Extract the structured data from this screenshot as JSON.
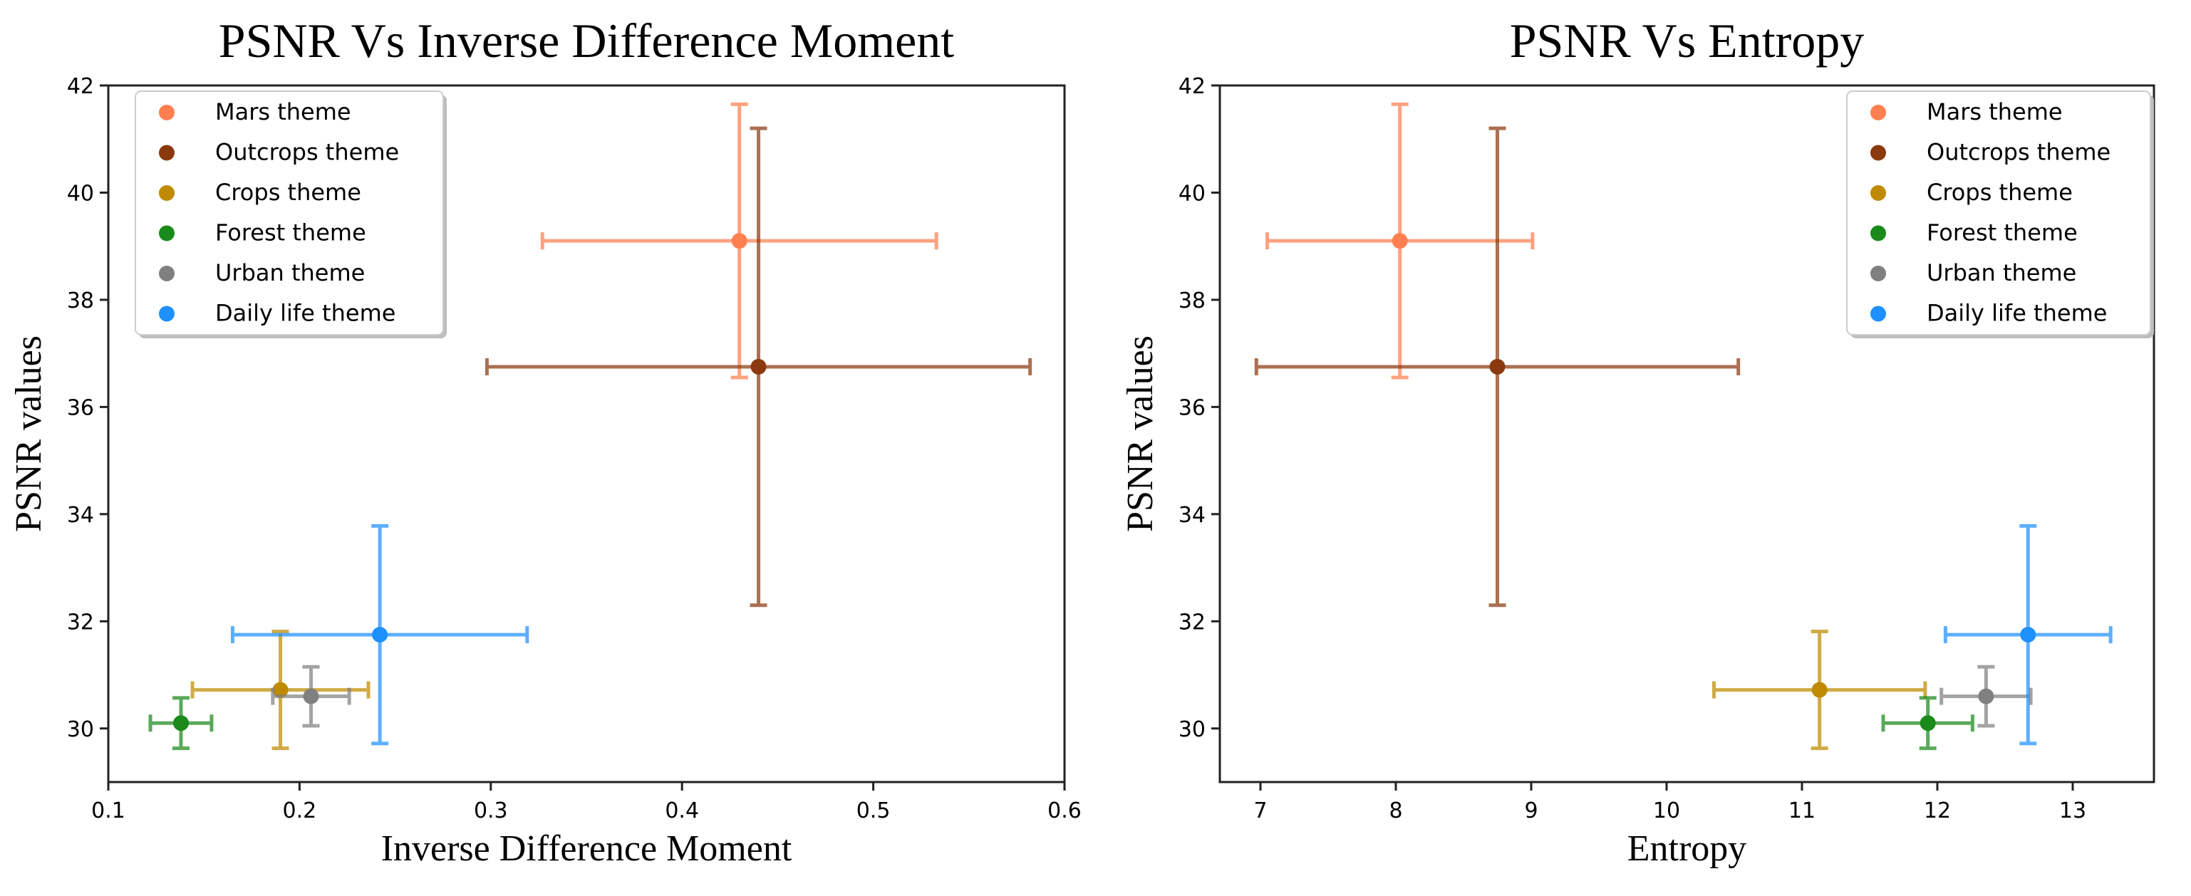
{
  "chart_data": [
    {
      "type": "scatter",
      "title": "PSNR Vs Inverse Difference Moment",
      "xlabel": "Inverse Difference Moment",
      "ylabel": "PSNR values",
      "xlim": [
        0.1,
        0.6
      ],
      "ylim": [
        29.0,
        42.0
      ],
      "xticks": [
        0.1,
        0.2,
        0.3,
        0.4,
        0.5,
        0.6
      ],
      "xtick_labels": [
        "0.1",
        "0.2",
        "0.3",
        "0.4",
        "0.5",
        "0.6"
      ],
      "yticks": [
        30,
        32,
        34,
        36,
        38,
        40,
        42
      ],
      "ytick_labels": [
        "30",
        "32",
        "34",
        "36",
        "38",
        "40",
        "42"
      ],
      "grid": false,
      "legend_position": "top-left",
      "series": [
        {
          "name": "Mars theme",
          "color": "#ff7f50",
          "x": 0.43,
          "y": 39.1,
          "xerr": 0.103,
          "yerr": 2.55
        },
        {
          "name": "Outcrops theme",
          "color": "#8b3a0f",
          "x": 0.44,
          "y": 36.75,
          "xerr": 0.142,
          "yerr": 4.45
        },
        {
          "name": "Crops theme",
          "color": "#bf8a00",
          "x": 0.19,
          "y": 30.72,
          "xerr": 0.046,
          "yerr": 1.09
        },
        {
          "name": "Forest theme",
          "color": "#1a8a1a",
          "x": 0.138,
          "y": 30.1,
          "xerr": 0.016,
          "yerr": 0.47
        },
        {
          "name": "Urban theme",
          "color": "#808080",
          "x": 0.206,
          "y": 30.6,
          "xerr": 0.02,
          "yerr": 0.55
        },
        {
          "name": "Daily life theme",
          "color": "#1e90ff",
          "x": 0.242,
          "y": 31.75,
          "xerr": 0.077,
          "yerr": 2.03
        }
      ]
    },
    {
      "type": "scatter",
      "title": "PSNR Vs Entropy",
      "xlabel": "Entropy",
      "ylabel": "PSNR values",
      "xlim": [
        6.7,
        13.6
      ],
      "ylim": [
        29.0,
        42.0
      ],
      "xticks": [
        7,
        8,
        9,
        10,
        11,
        12,
        13
      ],
      "xtick_labels": [
        "7",
        "8",
        "9",
        "10",
        "11",
        "12",
        "13"
      ],
      "yticks": [
        30,
        32,
        34,
        36,
        38,
        40,
        42
      ],
      "ytick_labels": [
        "30",
        "32",
        "34",
        "36",
        "38",
        "40",
        "42"
      ],
      "grid": false,
      "legend_position": "top-right",
      "series": [
        {
          "name": "Mars theme",
          "color": "#ff7f50",
          "x": 8.03,
          "y": 39.1,
          "xerr": 0.98,
          "yerr": 2.55
        },
        {
          "name": "Outcrops theme",
          "color": "#8b3a0f",
          "x": 8.75,
          "y": 36.75,
          "xerr": 1.78,
          "yerr": 4.45
        },
        {
          "name": "Crops theme",
          "color": "#bf8a00",
          "x": 11.13,
          "y": 30.72,
          "xerr": 0.78,
          "yerr": 1.09
        },
        {
          "name": "Forest theme",
          "color": "#1a8a1a",
          "x": 11.93,
          "y": 30.1,
          "xerr": 0.33,
          "yerr": 0.47
        },
        {
          "name": "Urban theme",
          "color": "#808080",
          "x": 12.36,
          "y": 30.6,
          "xerr": 0.33,
          "yerr": 0.55
        },
        {
          "name": "Daily life theme",
          "color": "#1e90ff",
          "x": 12.67,
          "y": 31.75,
          "xerr": 0.61,
          "yerr": 2.03
        }
      ]
    }
  ]
}
